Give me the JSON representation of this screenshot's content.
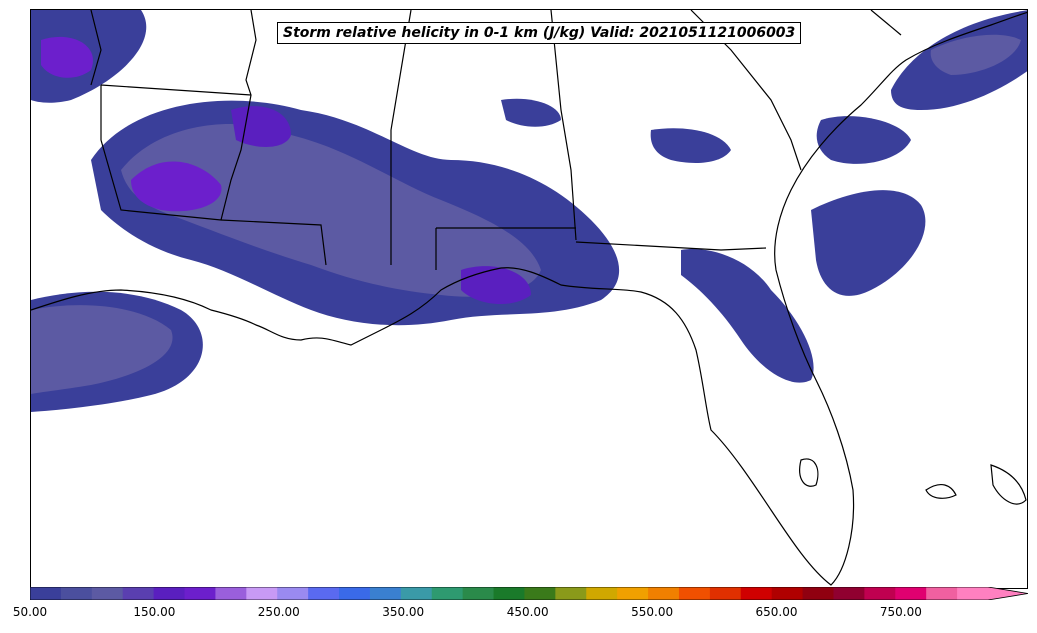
{
  "title": "Storm relative helicity in 0-1 km (J/kg) Valid: 2021051121006003",
  "colorbar": {
    "min": 50,
    "max": 820,
    "step": 25,
    "extend": "max",
    "tick_values": [
      50,
      150,
      250,
      350,
      450,
      550,
      650,
      750
    ],
    "tick_labels": [
      "50.00",
      "150.00",
      "250.00",
      "350.00",
      "450.00",
      "550.00",
      "650.00",
      "750.00"
    ],
    "colors": [
      "#3a3f9a",
      "#4b4f9e",
      "#5c5aa3",
      "#5a3fb0",
      "#5a1fbf",
      "#6c1fcc",
      "#9a5fdc",
      "#c89af5",
      "#9a8af0",
      "#5a6af0",
      "#3a6ae8",
      "#3a80d0",
      "#3a9aa8",
      "#2e9a70",
      "#2a8a4a",
      "#1a7a2a",
      "#3a7a1a",
      "#8a9a1a",
      "#d0a800",
      "#f0a000",
      "#f08000",
      "#f05000",
      "#e03000",
      "#d00000",
      "#b00000",
      "#900010",
      "#900030",
      "#c00050",
      "#e00070",
      "#f060a0",
      "#ff80c0"
    ]
  }
}
